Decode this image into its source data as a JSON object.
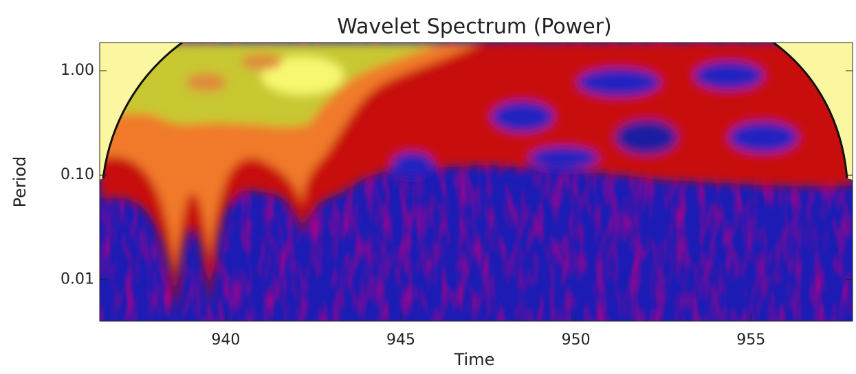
{
  "chart_data": {
    "type": "wavelet",
    "title": "Wavelet Spectrum (Power)",
    "x_label": "Time",
    "y_label": "Period",
    "xlim": [
      936.4,
      957.9
    ],
    "xticks": [
      940,
      945,
      950,
      955
    ],
    "ylim": [
      0.004,
      1.86
    ],
    "log_y": true,
    "yticks": [
      {
        "value": 1,
        "label": "1.00"
      },
      {
        "value": 0.1,
        "label": "0.10"
      },
      {
        "value": 0.01,
        "label": "0.01"
      }
    ]
  }
}
